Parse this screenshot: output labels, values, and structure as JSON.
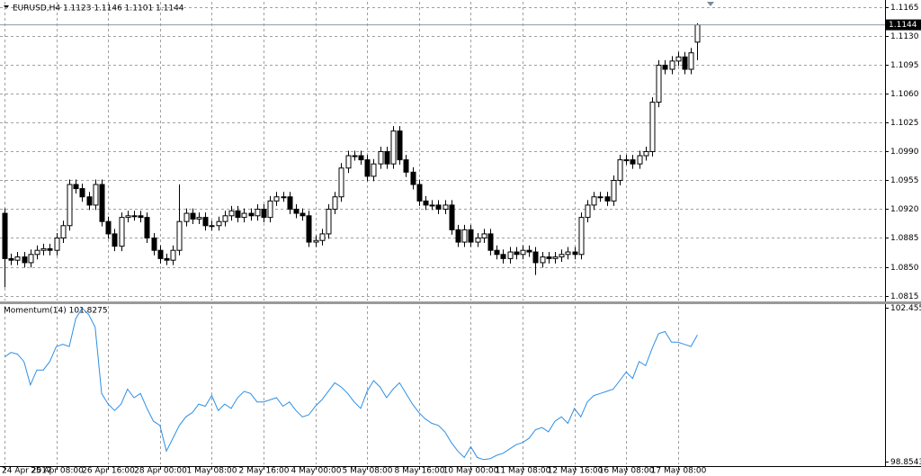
{
  "chart_data": [
    {
      "type": "candlestick",
      "title": "EURUSD,H4  1.1123 1.1146 1.1101 1.1144",
      "x_labels": [
        "24 Apr 2017",
        "25 Apr 08:00",
        "26 Apr 16:00",
        "28 Apr 00:00",
        "1 May 08:00",
        "2 May 16:00",
        "4 May 00:00",
        "5 May 08:00",
        "8 May 16:00",
        "10 May 00:00",
        "11 May 08:00",
        "12 May 16:00",
        "16 May 08:00",
        "17 May 08:00"
      ],
      "open": [
        1.0915,
        1.086,
        1.0858,
        1.0862,
        1.0855,
        1.0865,
        1.087,
        1.0872,
        1.087,
        1.0885,
        1.09,
        1.095,
        1.0945,
        1.0935,
        1.0925,
        1.095,
        1.0905,
        1.089,
        1.0875,
        1.091,
        1.0912,
        1.0912,
        1.091,
        1.0885,
        1.087,
        1.086,
        1.0858,
        1.087,
        1.0905,
        1.0915,
        1.0908,
        1.091,
        1.09,
        1.09,
        1.0905,
        1.0912,
        1.0918,
        1.091,
        1.0915,
        1.0912,
        1.092,
        1.091,
        1.093,
        1.0935,
        1.0935,
        1.092,
        1.0915,
        1.0912,
        1.088,
        1.0882,
        1.089,
        1.092,
        1.0935,
        1.097,
        1.0985,
        1.0985,
        1.098,
        1.096,
        1.0975,
        1.099,
        1.0975,
        1.1015,
        1.098,
        1.0965,
        1.095,
        1.093,
        1.0925,
        1.0925,
        1.092,
        1.0925,
        1.0895,
        1.088,
        1.0895,
        1.088,
        1.0885,
        1.089,
        1.087,
        1.0865,
        1.086,
        1.0868,
        1.0865,
        1.087,
        1.0868,
        1.0855,
        1.0862,
        1.086,
        1.0862,
        1.0865,
        1.0868,
        1.0865,
        1.091,
        1.0925,
        1.0935,
        1.0935,
        1.093,
        1.0955,
        1.098,
        1.098,
        1.0975,
        1.0985,
        1.099,
        1.105,
        1.1095,
        1.109,
        1.11,
        1.1105,
        1.109,
        1.1123
      ],
      "high": [
        1.0921,
        1.0866,
        1.0868,
        1.0868,
        1.0871,
        1.0876,
        1.0878,
        1.0878,
        1.0891,
        1.0906,
        1.0956,
        1.0956,
        1.0951,
        1.0941,
        1.0956,
        1.0956,
        1.0911,
        1.0896,
        1.0916,
        1.0918,
        1.0918,
        1.0918,
        1.0916,
        1.0891,
        1.0876,
        1.0866,
        1.0876,
        1.095,
        1.0921,
        1.0921,
        1.0916,
        1.0916,
        1.0906,
        1.0911,
        1.0918,
        1.0924,
        1.0924,
        1.0921,
        1.0921,
        1.0926,
        1.0926,
        1.0936,
        1.0941,
        1.0941,
        1.0941,
        1.0926,
        1.0921,
        1.0918,
        1.0888,
        1.0896,
        1.0926,
        1.0941,
        1.0976,
        1.0991,
        1.0991,
        1.0991,
        1.0986,
        1.0981,
        1.0996,
        1.0996,
        1.1021,
        1.1021,
        1.0986,
        1.0971,
        1.0956,
        1.0936,
        1.0931,
        1.0931,
        1.0931,
        1.0931,
        1.0901,
        1.0901,
        1.0901,
        1.0891,
        1.0896,
        1.0896,
        1.0876,
        1.0871,
        1.0874,
        1.0874,
        1.0876,
        1.0876,
        1.0874,
        1.0868,
        1.0868,
        1.0868,
        1.0871,
        1.0874,
        1.0874,
        1.0916,
        1.0931,
        1.0941,
        1.0941,
        1.0941,
        1.0961,
        1.0986,
        1.0986,
        1.0986,
        1.0991,
        1.0996,
        1.1056,
        1.1101,
        1.1101,
        1.1106,
        1.1111,
        1.1111,
        1.1116,
        1.1146
      ],
      "low": [
        1.0825,
        1.0852,
        1.0852,
        1.0849,
        1.0849,
        1.0859,
        1.0864,
        1.0864,
        1.0864,
        1.0879,
        1.0894,
        1.0939,
        1.0929,
        1.0919,
        1.0919,
        1.0899,
        1.0884,
        1.0869,
        1.0869,
        1.0904,
        1.0906,
        1.0904,
        1.0879,
        1.0864,
        1.0854,
        1.0852,
        1.0852,
        1.0864,
        1.0899,
        1.0902,
        1.0902,
        1.0894,
        1.0894,
        1.0894,
        1.0899,
        1.0906,
        1.0904,
        1.0904,
        1.0906,
        1.0906,
        1.0904,
        1.0904,
        1.0924,
        1.0929,
        1.0914,
        1.0909,
        1.0906,
        1.0874,
        1.0874,
        1.0876,
        1.0884,
        1.0914,
        1.0929,
        1.0964,
        1.0979,
        1.0974,
        1.0954,
        1.0954,
        1.0969,
        1.0969,
        1.0969,
        1.0974,
        1.0959,
        1.0944,
        1.0924,
        1.0919,
        1.0919,
        1.0914,
        1.0914,
        1.0889,
        1.0874,
        1.0874,
        1.0874,
        1.0874,
        1.0879,
        1.0864,
        1.0859,
        1.0854,
        1.0854,
        1.0859,
        1.0859,
        1.0862,
        1.084,
        1.0849,
        1.0854,
        1.0854,
        1.0856,
        1.0859,
        1.0859,
        1.0859,
        1.0904,
        1.0919,
        1.0929,
        1.0924,
        1.0924,
        1.0949,
        1.0974,
        1.0969,
        1.0969,
        1.0979,
        1.0984,
        1.1044,
        1.1084,
        1.1084,
        1.1094,
        1.1084,
        1.1084,
        1.1101
      ],
      "close": [
        1.086,
        1.0858,
        1.0862,
        1.0855,
        1.0865,
        1.087,
        1.0872,
        1.087,
        1.0885,
        1.09,
        1.095,
        1.0945,
        1.0935,
        1.0925,
        1.095,
        1.0905,
        1.089,
        1.0875,
        1.091,
        1.0912,
        1.0912,
        1.091,
        1.0885,
        1.087,
        1.086,
        1.0858,
        1.087,
        1.0905,
        1.0915,
        1.0908,
        1.091,
        1.09,
        1.09,
        1.0905,
        1.0912,
        1.0918,
        1.091,
        1.0915,
        1.0912,
        1.092,
        1.091,
        1.093,
        1.0935,
        1.0935,
        1.092,
        1.0915,
        1.0912,
        1.088,
        1.0882,
        1.089,
        1.092,
        1.0935,
        1.097,
        1.0985,
        1.0985,
        1.098,
        1.096,
        1.0975,
        1.099,
        1.0975,
        1.1015,
        1.098,
        1.0965,
        1.095,
        1.093,
        1.0925,
        1.0925,
        1.092,
        1.0925,
        1.0895,
        1.088,
        1.0895,
        1.088,
        1.0885,
        1.089,
        1.087,
        1.0865,
        1.086,
        1.0868,
        1.0865,
        1.087,
        1.0868,
        1.0855,
        1.0862,
        1.086,
        1.0862,
        1.0865,
        1.0868,
        1.0865,
        1.091,
        1.0925,
        1.0935,
        1.0935,
        1.093,
        1.0955,
        1.098,
        1.098,
        1.0975,
        1.0985,
        1.099,
        1.105,
        1.1095,
        1.109,
        1.11,
        1.1105,
        1.109,
        1.111,
        1.1144
      ],
      "up_color": "#ffffff",
      "down_color": "#000000",
      "ylim": [
        1.0809,
        1.1172
      ],
      "yticks": [
        1.1165,
        {
          "value": 1.113,
          "label": "1.1130"
        },
        1.1095,
        {
          "value": 1.106,
          "label": "1.1060"
        },
        1.1025,
        {
          "value": 1.099,
          "label": "1.0990"
        },
        1.0955,
        {
          "value": 1.092,
          "label": "1.0920"
        },
        1.0885,
        {
          "value": 1.085,
          "label": "1.0850"
        },
        1.0815
      ],
      "grid": true
    },
    {
      "type": "line",
      "title": "Momentum(14) 101.8275",
      "color": "#2e8fe6",
      "values": [
        101.3,
        101.41,
        101.37,
        101.2,
        100.65,
        101.0,
        101.0,
        101.2,
        101.55,
        101.6,
        101.55,
        102.2,
        102.45,
        102.3,
        102.0,
        100.45,
        100.2,
        100.05,
        100.2,
        100.55,
        100.35,
        100.45,
        100.1,
        99.8,
        99.7,
        99.1,
        99.4,
        99.7,
        99.9,
        100.0,
        100.2,
        100.15,
        100.4,
        100.05,
        100.2,
        100.1,
        100.35,
        100.5,
        100.45,
        100.25,
        100.25,
        100.3,
        100.35,
        100.15,
        100.25,
        100.05,
        99.9,
        99.95,
        100.15,
        100.3,
        100.5,
        100.7,
        100.6,
        100.45,
        100.25,
        100.1,
        100.5,
        100.75,
        100.6,
        100.35,
        100.55,
        100.7,
        100.45,
        100.2,
        100.0,
        99.85,
        99.75,
        99.7,
        99.55,
        99.3,
        99.1,
        98.95,
        99.2,
        98.95,
        98.9,
        98.92,
        99.0,
        99.05,
        99.15,
        99.25,
        99.3,
        99.4,
        99.6,
        99.65,
        99.55,
        99.8,
        99.9,
        99.75,
        100.1,
        99.9,
        100.25,
        100.4,
        100.45,
        100.5,
        100.55,
        100.75,
        100.95,
        100.8,
        101.2,
        101.1,
        101.5,
        101.85,
        101.9,
        101.65,
        101.65,
        101.6,
        101.55,
        101.82
      ],
      "ylim": [
        98.79,
        102.5
      ],
      "yticks": [
        102.4551,
        98.8543
      ]
    }
  ]
}
